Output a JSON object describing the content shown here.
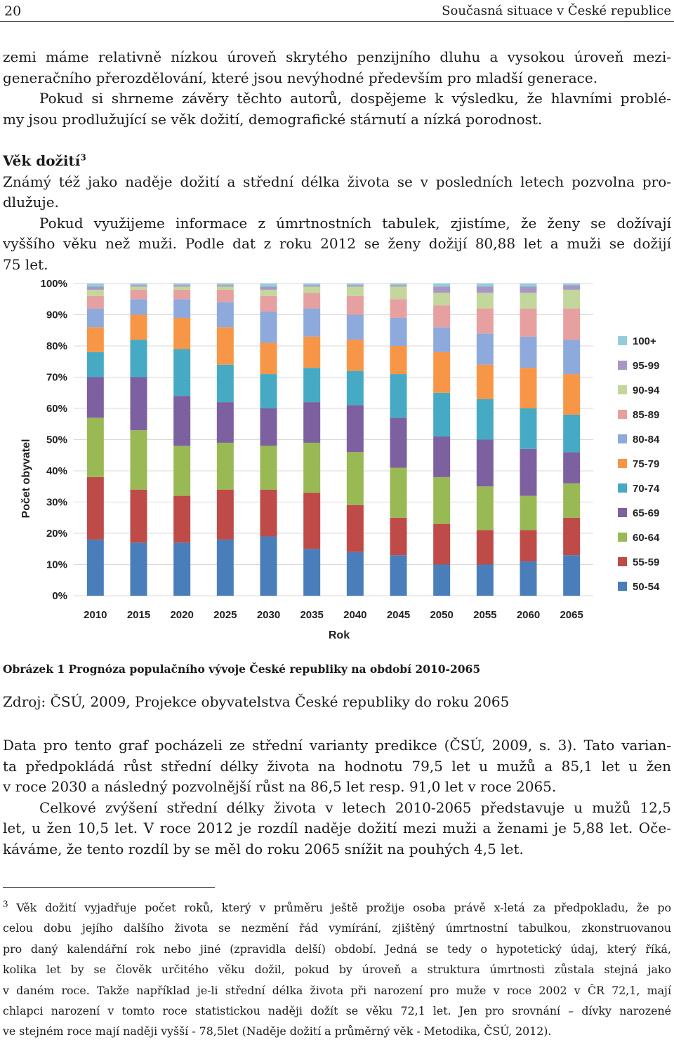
{
  "header": {
    "page_number": "20",
    "running_title": "Současná situace v České republice"
  },
  "intro_lines": [
    "zemi máme relativně nízkou úroveň skrytého penzijního dluhu a vysokou úroveň mezi-",
    "generačního přerozdělování, které jsou nevýhodné především pro mladší generace.",
    "Pokud si shrneme závěry těchto autorů, dospějeme k výsledku, že hlavními problé-",
    "my jsou prodlužující se věk dožití, demografické stárnutí a nízká porodnost."
  ],
  "section": {
    "title": "Věk dožití",
    "footnote_ref": "3"
  },
  "section_lines": [
    "Známý též jako naděje dožití a střední délka života se v posledních letech pozvolna pro-",
    "dlužuje.",
    "Pokud využijeme informace z úmrtnostních tabulek, zjistíme, že ženy se dožívají",
    "vyššího věku než muži. Podle dat z roku 2012 se ženy dožijí 80,88 let a muži se dožijí",
    "75 let."
  ],
  "chart_data": {
    "type": "bar",
    "stacked": true,
    "xlabel": "Rok",
    "ylabel": "Počet obyvatel",
    "ylim": [
      0,
      100
    ],
    "yticks": [
      "0%",
      "10%",
      "20%",
      "30%",
      "40%",
      "50%",
      "60%",
      "70%",
      "80%",
      "90%",
      "100%"
    ],
    "legend_position": "right",
    "categories": [
      "2010",
      "2015",
      "2020",
      "2025",
      "2030",
      "2035",
      "2040",
      "2045",
      "2050",
      "2055",
      "2060",
      "2065"
    ],
    "series": [
      {
        "name": "50-54",
        "color": "#4a7ebb",
        "values": [
          18,
          17,
          17,
          18,
          19,
          15,
          14,
          13,
          10,
          10,
          11,
          13
        ]
      },
      {
        "name": "55-59",
        "color": "#be4b48",
        "values": [
          20,
          17,
          15,
          16,
          15,
          18,
          15,
          12,
          13,
          11,
          10,
          12
        ]
      },
      {
        "name": "60-64",
        "color": "#98b954",
        "values": [
          19,
          19,
          16,
          15,
          14,
          16,
          17,
          16,
          15,
          14,
          11,
          11
        ]
      },
      {
        "name": "65-69",
        "color": "#7d60a0",
        "values": [
          13,
          17,
          16,
          13,
          12,
          13,
          15,
          16,
          13,
          15,
          15,
          10
        ]
      },
      {
        "name": "70-74",
        "color": "#46aac5",
        "values": [
          8,
          12,
          15,
          12,
          11,
          11,
          11,
          14,
          14,
          13,
          13,
          12
        ]
      },
      {
        "name": "75-79",
        "color": "#f79646",
        "values": [
          8,
          8,
          10,
          12,
          10,
          10,
          10,
          9,
          13,
          11,
          13,
          13
        ]
      },
      {
        "name": "80-84",
        "color": "#8ea9db",
        "values": [
          6,
          5,
          6,
          8,
          10,
          9,
          8,
          9,
          8,
          10,
          10,
          11
        ]
      },
      {
        "name": "85-89",
        "color": "#e6a0a0",
        "values": [
          4,
          3,
          3,
          4,
          5,
          5,
          6,
          6,
          7,
          8,
          9,
          10
        ]
      },
      {
        "name": "90-94",
        "color": "#c3d69b",
        "values": [
          2,
          1,
          1,
          1,
          2,
          2,
          3,
          4,
          4,
          5,
          5,
          6
        ]
      },
      {
        "name": "95-99",
        "color": "#a897c5",
        "values": [
          1,
          0.5,
          0.5,
          0.5,
          1,
          0.5,
          0.5,
          0.5,
          2,
          2,
          2,
          1.5
        ]
      },
      {
        "name": "100+",
        "color": "#93cddd",
        "values": [
          1,
          0.5,
          0.5,
          0.5,
          1,
          0.5,
          0.5,
          0.5,
          1,
          1,
          1,
          0.5
        ]
      }
    ]
  },
  "caption": "Obrázek 1 Prognóza populačního vývoje České republiky na období 2010-2065",
  "source": "Zdroj: ČSÚ, 2009, Projekce obyvatelstva České republiky do roku 2065",
  "body_lines": [
    "Data pro tento graf pocházeli ze střední varianty predikce (ČSÚ, 2009, s. 3). Tato varian-",
    "ta předpokládá růst střední délky života na hodnotu 79,5 let u mužů a 85,1 let u žen",
    "v roce 2030 a následný pozvolnější růst na 86,5 let resp. 91,0 let v roce 2065.",
    "Celkové zvýšení střední délky života v letech 2010-2065 představuje u mužů 12,5",
    "let, u žen 10,5 let. V roce 2012 je rozdíl naděje dožití mezi muži a ženami je 5,88 let. Oče-",
    "káváme, že tento rozdíl by se měl do roku 2065 snížit na pouhých 4,5 let."
  ],
  "footnote": {
    "number": "3",
    "lines": [
      "Věk dožití vyjadřuje počet roků, který v průměru ještě prožije osoba právě x-letá za předpokladu, že po",
      "celou dobu jejího dalšího života se nezmění řád vymírání, zjištěný úmrtnostní tabulkou, zkonstruovanou",
      "pro daný kalendářní rok nebo jiné (zpravidla delší) období. Jedná se tedy o hypotetický údaj, který říká,",
      "kolika let by se člověk určitého věku dožil, pokud by úroveň a struktura úmrtnosti zůstala stejná jako",
      "v daném roce. Takže například je-li střední délka života při narození pro muže v roce 2002 v ČR 72,1, mají",
      "chlapci narození v tomto roce statistickou naději dožít se věku 72,1 let. Jen pro srovnání – dívky narozené",
      "ve stejném roce mají naději vyšší - 78,5let (Naděje dožití a průměrný věk - Metodika, ČSÚ, 2012)."
    ]
  }
}
